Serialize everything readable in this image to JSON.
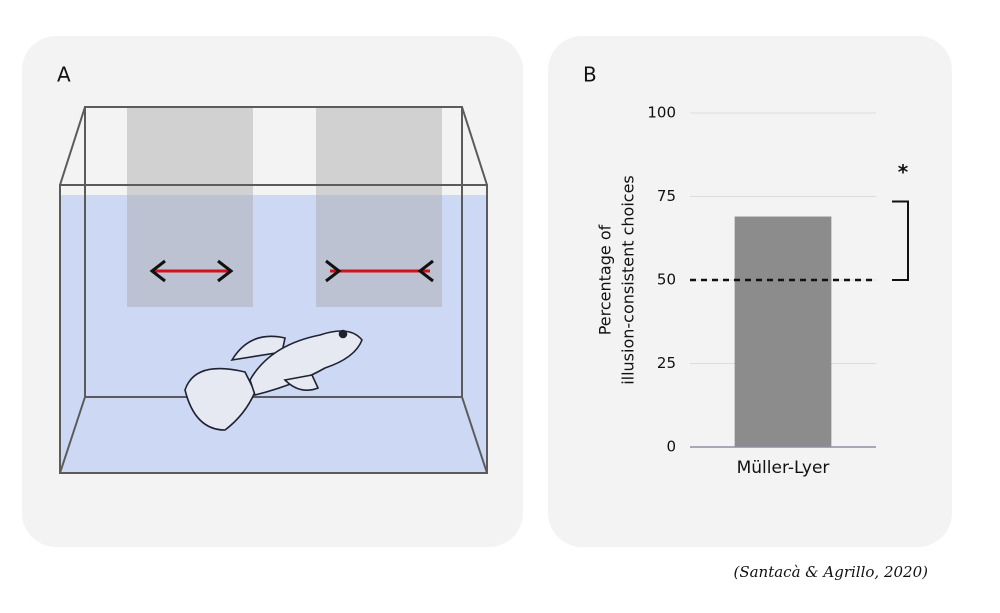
{
  "panel_a": {
    "label": "A"
  },
  "chart_data": {
    "type": "bar",
    "panel_label": "B",
    "categories": [
      "Müller-Lyer"
    ],
    "values": [
      69
    ],
    "color": "#8c8c8c",
    "ylabel": [
      "Percentage of",
      "illusion-consistent choices"
    ],
    "ylim": [
      0,
      100
    ],
    "yticks": [
      0,
      25,
      50,
      75,
      100
    ],
    "grid": true,
    "reference_line": 50,
    "annotation": "*"
  },
  "citation": "(Santacà & Agrillo, 2020)"
}
